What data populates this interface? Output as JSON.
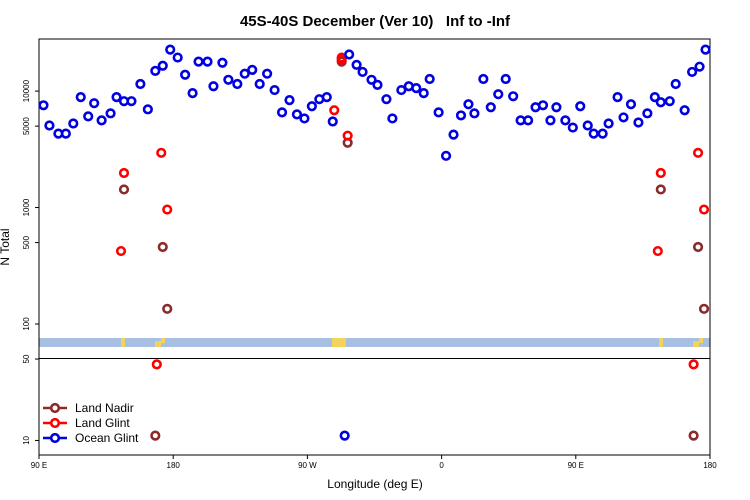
{
  "chart_data": {
    "type": "scatter",
    "title": "45S-40S December (Ver 10)   Inf to -Inf",
    "xlabel": "Longitude (deg E)",
    "ylabel": "N Total",
    "log_y": true,
    "legend": "lower left",
    "xlim": [
      90,
      540
    ],
    "xticks": [
      {
        "value": 90,
        "label": "90 E"
      },
      180,
      {
        "value": 270,
        "label": "90 W"
      },
      {
        "value": 360,
        "label": "0"
      },
      {
        "value": 450,
        "label": "90 E"
      },
      {
        "value": 540,
        "label": "180"
      }
    ],
    "ylim": [
      7.5,
      28000
    ],
    "yticks": [
      10,
      50,
      100,
      500,
      1000,
      5000,
      10000
    ],
    "series": [
      {
        "name": "Land Nadir",
        "color": "#8b2a2a",
        "x": [
          147,
          173,
          176,
          168,
          293,
          297,
          507,
          532,
          536,
          529
        ],
        "values": [
          1430,
          458,
          135,
          11,
          17900,
          3600,
          1430,
          458,
          135,
          11
        ]
      },
      {
        "name": "Land Glint",
        "color": "#ff0000",
        "x": [
          145,
          147,
          172,
          176,
          169,
          288,
          293,
          293,
          297,
          505,
          507,
          532,
          536,
          529
        ],
        "values": [
          423,
          1980,
          2950,
          961,
          45,
          6840,
          18600,
          19400,
          4140,
          423,
          1980,
          2950,
          961,
          45
        ]
      },
      {
        "name": "Ocean Glint",
        "color": "#0000e0",
        "x": [
          93,
          97,
          103,
          108,
          113,
          118,
          123,
          127,
          132,
          138,
          142,
          147,
          152,
          158,
          163,
          168,
          173,
          178,
          183,
          188,
          193,
          197,
          203,
          207,
          213,
          217,
          223,
          228,
          233,
          238,
          243,
          248,
          253,
          258,
          263,
          268,
          273,
          278,
          283,
          287,
          298,
          303,
          307,
          313,
          317,
          323,
          327,
          333,
          338,
          343,
          348,
          352,
          358,
          363,
          368,
          373,
          378,
          382,
          388,
          393,
          398,
          403,
          408,
          413,
          418,
          423,
          428,
          433,
          437,
          443,
          448,
          453,
          458,
          462,
          468,
          472,
          478,
          482,
          487,
          492,
          498,
          503,
          507,
          513,
          517,
          523,
          528,
          533,
          537,
          295
        ],
        "values": [
          7550,
          5060,
          4310,
          4310,
          5270,
          8870,
          6060,
          7870,
          5600,
          6440,
          8870,
          8190,
          8190,
          11500,
          6970,
          14900,
          16500,
          22700,
          19400,
          13800,
          9600,
          17900,
          17900,
          11000,
          17500,
          12500,
          11500,
          14100,
          15200,
          11500,
          14100,
          10200,
          6560,
          8360,
          6310,
          5820,
          7410,
          8520,
          8870,
          5480,
          20600,
          16800,
          14600,
          12500,
          11300,
          8520,
          5820,
          10200,
          11000,
          10600,
          9600,
          12700,
          6560,
          2780,
          4230,
          6180,
          7710,
          6440,
          12700,
          7260,
          9400,
          12700,
          9020,
          5600,
          5600,
          7260,
          7550,
          5600,
          7260,
          5600,
          4860,
          7410,
          5060,
          4310,
          4310,
          5270,
          8870,
          5940,
          7710,
          5370,
          6440,
          8870,
          8020,
          8190,
          11500,
          6840,
          14600,
          16200,
          22700,
          11
        ]
      }
    ]
  }
}
